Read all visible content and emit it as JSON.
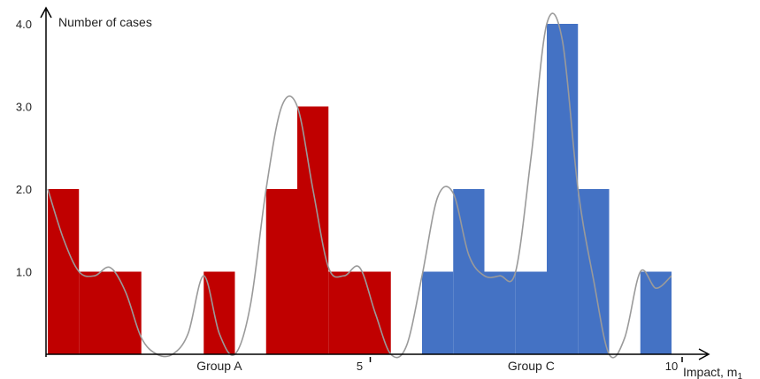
{
  "chart_data": {
    "type": "bar",
    "ylabel": "Number of cases",
    "xlabel": "Impact, m",
    "xlabel_subscript": "1",
    "ylim": [
      0,
      4
    ],
    "xlim": [
      0,
      10.5
    ],
    "grid": false,
    "y_ticks": [
      "1.0",
      "2.0",
      "3.0",
      "4.0"
    ],
    "y_tick_values": [
      1,
      2,
      3,
      4
    ],
    "x_ticks": [
      "5",
      "10"
    ],
    "x_tick_values": [
      5,
      10
    ],
    "colors": {
      "group_a": "#c00000",
      "group_c": "#4472c4",
      "curve": "#9a9a9a",
      "axis": "#000000"
    },
    "series": [
      {
        "name": "Group A",
        "color": "#c00000",
        "bins": [
          {
            "x0": 0.0,
            "x1": 0.5,
            "value": 2
          },
          {
            "x0": 0.5,
            "x1": 1.0,
            "value": 1
          },
          {
            "x0": 1.0,
            "x1": 1.5,
            "value": 1
          },
          {
            "x0": 2.5,
            "x1": 3.0,
            "value": 1
          },
          {
            "x0": 3.5,
            "x1": 4.0,
            "value": 2
          },
          {
            "x0": 4.0,
            "x1": 4.5,
            "value": 3
          },
          {
            "x0": 4.5,
            "x1": 5.0,
            "value": 1
          },
          {
            "x0": 5.0,
            "x1": 5.5,
            "value": 1
          }
        ]
      },
      {
        "name": "Group C",
        "color": "#4472c4",
        "bins": [
          {
            "x0": 6.0,
            "x1": 6.5,
            "value": 1
          },
          {
            "x0": 6.5,
            "x1": 7.0,
            "value": 2
          },
          {
            "x0": 7.0,
            "x1": 7.5,
            "value": 1
          },
          {
            "x0": 7.5,
            "x1": 8.0,
            "value": 1
          },
          {
            "x0": 8.0,
            "x1": 8.5,
            "value": 4
          },
          {
            "x0": 8.5,
            "x1": 9.0,
            "value": 2
          },
          {
            "x0": 9.5,
            "x1": 10.0,
            "value": 1
          }
        ]
      }
    ],
    "density_curve": {
      "x": [
        0,
        0.25,
        0.5,
        0.75,
        1.0,
        1.25,
        1.5,
        1.75,
        2.0,
        2.25,
        2.5,
        2.75,
        3.0,
        3.25,
        3.5,
        3.75,
        4.0,
        4.25,
        4.5,
        4.75,
        5.0,
        5.25,
        5.5,
        5.75,
        6.0,
        6.25,
        6.5,
        6.75,
        7.0,
        7.25,
        7.5,
        7.75,
        8.0,
        8.25,
        8.5,
        8.75,
        9.0,
        9.25,
        9.5,
        9.75,
        10.0
      ],
      "y": [
        2.0,
        1.4,
        1.0,
        0.95,
        1.05,
        0.75,
        0.2,
        0.0,
        0.0,
        0.25,
        0.95,
        0.25,
        0.0,
        0.6,
        2.0,
        3.0,
        3.0,
        2.0,
        1.05,
        0.95,
        1.05,
        0.5,
        0.0,
        0.1,
        0.95,
        1.9,
        1.95,
        1.2,
        0.95,
        0.95,
        1.0,
        2.4,
        4.0,
        3.8,
        2.0,
        0.9,
        0.0,
        0.2,
        1.0,
        0.8,
        0.95
      ]
    },
    "group_labels": [
      {
        "text": "Group A",
        "x": 2.75
      },
      {
        "text": "Group C",
        "x": 7.75
      }
    ]
  }
}
